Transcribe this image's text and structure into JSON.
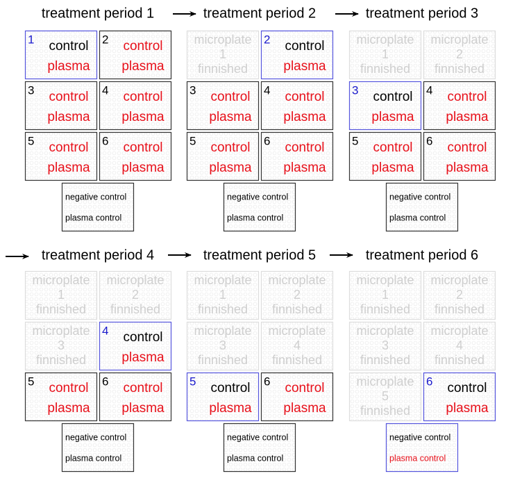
{
  "panels": [
    {
      "title": "treatment period 1",
      "plates": [
        {
          "number": 1,
          "number_color": "#1a1acc",
          "lines": [
            "control",
            "plasma"
          ],
          "line_colors": [
            "#000000",
            "#e8101a"
          ],
          "border": "#5555dd"
        },
        {
          "number": 2,
          "number_color": "#000000",
          "lines": [
            "control",
            "plasma"
          ],
          "line_colors": [
            "#e8101a",
            "#e8101a"
          ],
          "border": "#333333"
        },
        {
          "number": 3,
          "number_color": "#000000",
          "lines": [
            "control",
            "plasma"
          ],
          "line_colors": [
            "#e8101a",
            "#e8101a"
          ],
          "border": "#333333"
        },
        {
          "number": 4,
          "number_color": "#000000",
          "lines": [
            "control",
            "plasma"
          ],
          "line_colors": [
            "#e8101a",
            "#e8101a"
          ],
          "border": "#333333"
        },
        {
          "number": 5,
          "number_color": "#000000",
          "lines": [
            "control",
            "plasma"
          ],
          "line_colors": [
            "#e8101a",
            "#e8101a"
          ],
          "border": "#333333"
        },
        {
          "number": 6,
          "number_color": "#000000",
          "lines": [
            "control",
            "plasma"
          ],
          "line_colors": [
            "#e8101a",
            "#e8101a"
          ],
          "border": "#333333"
        }
      ],
      "control": {
        "lines": [
          "negative control",
          "plasma control"
        ],
        "line_colors": [
          "#000000",
          "#000000"
        ],
        "border": "#333333"
      }
    },
    {
      "title": "treatment period 2",
      "plates": [
        {
          "lines": [
            "microplate",
            "1",
            "finnished"
          ],
          "line_colors": [
            "#cfcfcf",
            "#cfcfcf",
            "#cfcfcf"
          ],
          "border": "#dddddd"
        },
        {
          "number": 2,
          "number_color": "#1a1acc",
          "lines": [
            "control",
            "plasma"
          ],
          "line_colors": [
            "#000000",
            "#e8101a"
          ],
          "border": "#5555dd"
        },
        {
          "number": 3,
          "number_color": "#000000",
          "lines": [
            "control",
            "plasma"
          ],
          "line_colors": [
            "#e8101a",
            "#e8101a"
          ],
          "border": "#333333"
        },
        {
          "number": 4,
          "number_color": "#000000",
          "lines": [
            "control",
            "plasma"
          ],
          "line_colors": [
            "#e8101a",
            "#e8101a"
          ],
          "border": "#333333"
        },
        {
          "number": 5,
          "number_color": "#000000",
          "lines": [
            "control",
            "plasma"
          ],
          "line_colors": [
            "#e8101a",
            "#e8101a"
          ],
          "border": "#333333"
        },
        {
          "number": 6,
          "number_color": "#000000",
          "lines": [
            "control",
            "plasma"
          ],
          "line_colors": [
            "#e8101a",
            "#e8101a"
          ],
          "border": "#333333"
        }
      ],
      "control": {
        "lines": [
          "negative control",
          "plasma control"
        ],
        "line_colors": [
          "#000000",
          "#000000"
        ],
        "border": "#333333"
      }
    },
    {
      "title": "treatment period 3",
      "plates": [
        {
          "lines": [
            "microplate",
            "1",
            "finnished"
          ],
          "line_colors": [
            "#cfcfcf",
            "#cfcfcf",
            "#cfcfcf"
          ],
          "border": "#dddddd"
        },
        {
          "lines": [
            "microplate",
            "2",
            "finnished"
          ],
          "line_colors": [
            "#cfcfcf",
            "#cfcfcf",
            "#cfcfcf"
          ],
          "border": "#dddddd"
        },
        {
          "number": 3,
          "number_color": "#1a1acc",
          "lines": [
            "control",
            "plasma"
          ],
          "line_colors": [
            "#000000",
            "#e8101a"
          ],
          "border": "#5555dd"
        },
        {
          "number": 4,
          "number_color": "#000000",
          "lines": [
            "control",
            "plasma"
          ],
          "line_colors": [
            "#e8101a",
            "#e8101a"
          ],
          "border": "#333333"
        },
        {
          "number": 5,
          "number_color": "#000000",
          "lines": [
            "control",
            "plasma"
          ],
          "line_colors": [
            "#e8101a",
            "#e8101a"
          ],
          "border": "#333333"
        },
        {
          "number": 6,
          "number_color": "#000000",
          "lines": [
            "control",
            "plasma"
          ],
          "line_colors": [
            "#e8101a",
            "#e8101a"
          ],
          "border": "#333333"
        }
      ],
      "control": {
        "lines": [
          "negative control",
          "plasma control"
        ],
        "line_colors": [
          "#000000",
          "#000000"
        ],
        "border": "#333333"
      }
    },
    {
      "title": "treatment period 4",
      "plates": [
        {
          "lines": [
            "microplate",
            "1",
            "finnished"
          ],
          "line_colors": [
            "#cfcfcf",
            "#cfcfcf",
            "#cfcfcf"
          ],
          "border": "#dddddd"
        },
        {
          "lines": [
            "microplate",
            "2",
            "finnished"
          ],
          "line_colors": [
            "#cfcfcf",
            "#cfcfcf",
            "#cfcfcf"
          ],
          "border": "#dddddd"
        },
        {
          "lines": [
            "microplate",
            "3",
            "finnished"
          ],
          "line_colors": [
            "#cfcfcf",
            "#cfcfcf",
            "#cfcfcf"
          ],
          "border": "#dddddd"
        },
        {
          "number": 4,
          "number_color": "#1a1acc",
          "lines": [
            "control",
            "plasma"
          ],
          "line_colors": [
            "#000000",
            "#e8101a"
          ],
          "border": "#5555dd"
        },
        {
          "number": 5,
          "number_color": "#000000",
          "lines": [
            "control",
            "plasma"
          ],
          "line_colors": [
            "#e8101a",
            "#e8101a"
          ],
          "border": "#333333"
        },
        {
          "number": 6,
          "number_color": "#000000",
          "lines": [
            "control",
            "plasma"
          ],
          "line_colors": [
            "#e8101a",
            "#e8101a"
          ],
          "border": "#333333"
        }
      ],
      "control": {
        "lines": [
          "negative control",
          "plasma control"
        ],
        "line_colors": [
          "#000000",
          "#000000"
        ],
        "border": "#333333"
      }
    },
    {
      "title": "treatment period 5",
      "plates": [
        {
          "lines": [
            "microplate",
            "1",
            "finnished"
          ],
          "line_colors": [
            "#cfcfcf",
            "#cfcfcf",
            "#cfcfcf"
          ],
          "border": "#dddddd"
        },
        {
          "lines": [
            "microplate",
            "2",
            "finnished"
          ],
          "line_colors": [
            "#cfcfcf",
            "#cfcfcf",
            "#cfcfcf"
          ],
          "border": "#dddddd"
        },
        {
          "lines": [
            "microplate",
            "3",
            "finnished"
          ],
          "line_colors": [
            "#cfcfcf",
            "#cfcfcf",
            "#cfcfcf"
          ],
          "border": "#dddddd"
        },
        {
          "lines": [
            "microplate",
            "4",
            "finnished"
          ],
          "line_colors": [
            "#cfcfcf",
            "#cfcfcf",
            "#cfcfcf"
          ],
          "border": "#dddddd"
        },
        {
          "number": 5,
          "number_color": "#1a1acc",
          "lines": [
            "control",
            "plasma"
          ],
          "line_colors": [
            "#000000",
            "#e8101a"
          ],
          "border": "#5555dd"
        },
        {
          "number": 6,
          "number_color": "#000000",
          "lines": [
            "control",
            "plasma"
          ],
          "line_colors": [
            "#e8101a",
            "#e8101a"
          ],
          "border": "#333333"
        }
      ],
      "control": {
        "lines": [
          "negative control",
          "plasma control"
        ],
        "line_colors": [
          "#000000",
          "#000000"
        ],
        "border": "#333333"
      }
    },
    {
      "title": "treatment period 6",
      "plates": [
        {
          "lines": [
            "microplate",
            "1",
            "finnished"
          ],
          "line_colors": [
            "#cfcfcf",
            "#cfcfcf",
            "#cfcfcf"
          ],
          "border": "#dddddd"
        },
        {
          "lines": [
            "microplate",
            "2",
            "finnished"
          ],
          "line_colors": [
            "#cfcfcf",
            "#cfcfcf",
            "#cfcfcf"
          ],
          "border": "#dddddd"
        },
        {
          "lines": [
            "microplate",
            "3",
            "finnished"
          ],
          "line_colors": [
            "#cfcfcf",
            "#cfcfcf",
            "#cfcfcf"
          ],
          "border": "#dddddd"
        },
        {
          "lines": [
            "microplate",
            "4",
            "finnished"
          ],
          "line_colors": [
            "#cfcfcf",
            "#cfcfcf",
            "#cfcfcf"
          ],
          "border": "#dddddd"
        },
        {
          "lines": [
            "microplate",
            "5",
            "finnished"
          ],
          "line_colors": [
            "#cfcfcf",
            "#cfcfcf",
            "#cfcfcf"
          ],
          "border": "#dddddd"
        },
        {
          "number": 6,
          "number_color": "#1a1acc",
          "lines": [
            "control",
            "plasma"
          ],
          "line_colors": [
            "#000000",
            "#e8101a"
          ],
          "border": "#5555dd"
        }
      ],
      "control": {
        "lines": [
          "negative control",
          "plasma control"
        ],
        "line_colors": [
          "#000000",
          "#e8101a"
        ],
        "border": "#5555dd"
      }
    }
  ]
}
